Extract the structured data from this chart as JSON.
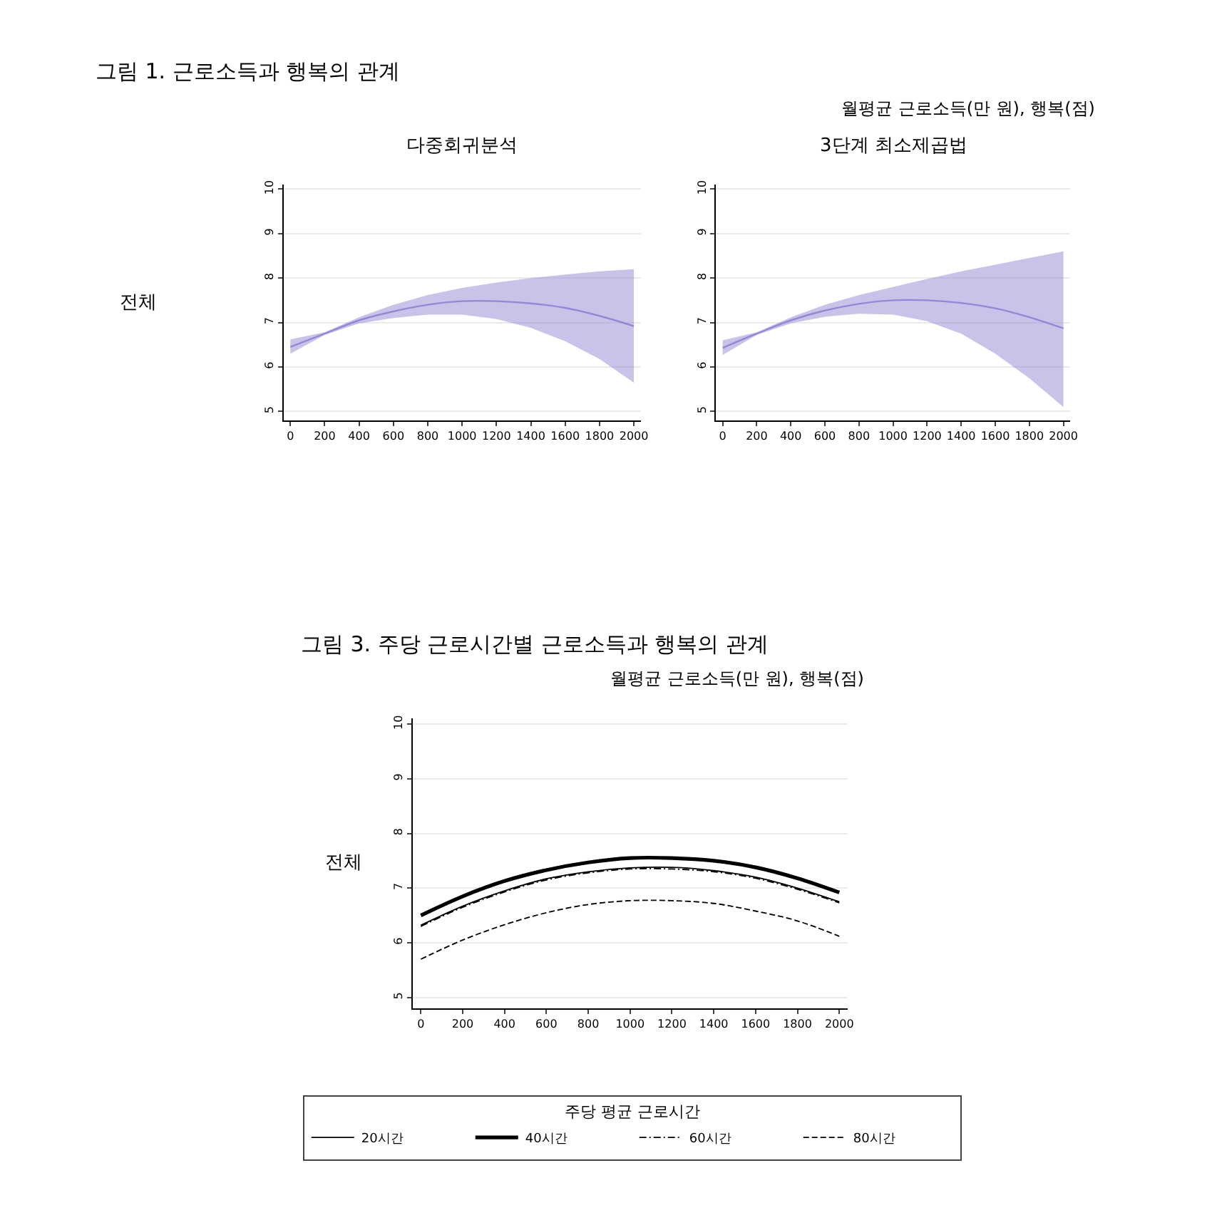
{
  "chart_data": [
    {
      "type": "line",
      "title": "다중회귀분석",
      "annotations": [
        "그림 1. 근로소득과 행복의 관계",
        "월평균 근로소득(만 원), 행복(점)",
        "전체"
      ],
      "x": [
        0,
        200,
        400,
        600,
        800,
        1000,
        1200,
        1400,
        1600,
        1800,
        2000
      ],
      "series": [
        {
          "color": "#9488d4",
          "values": [
            6.45,
            6.75,
            7.05,
            7.25,
            7.4,
            7.48,
            7.48,
            7.43,
            7.33,
            7.15,
            6.92
          ],
          "lower": [
            6.3,
            6.72,
            6.98,
            7.1,
            7.18,
            7.18,
            7.08,
            6.88,
            6.58,
            6.18,
            5.65
          ],
          "upper": [
            6.62,
            6.78,
            7.12,
            7.4,
            7.62,
            7.78,
            7.9,
            8.0,
            8.08,
            8.15,
            8.2
          ]
        }
      ],
      "xlim": [
        -40,
        2040
      ],
      "ylim": [
        4.8,
        10.1
      ],
      "xticks": [
        0,
        200,
        400,
        600,
        800,
        1000,
        1200,
        1400,
        1600,
        1800,
        2000
      ],
      "yticks": [
        5,
        6,
        7,
        8,
        9,
        10
      ],
      "grid": "y",
      "legend": false
    },
    {
      "type": "line",
      "title": "3단계 최소제곱법",
      "x": [
        0,
        200,
        400,
        600,
        800,
        1000,
        1200,
        1400,
        1600,
        1800,
        2000
      ],
      "series": [
        {
          "color": "#9488d4",
          "values": [
            6.43,
            6.75,
            7.05,
            7.27,
            7.42,
            7.5,
            7.5,
            7.44,
            7.32,
            7.12,
            6.87
          ],
          "lower": [
            6.27,
            6.72,
            6.98,
            7.13,
            7.2,
            7.18,
            7.03,
            6.75,
            6.3,
            5.75,
            5.1
          ],
          "upper": [
            6.6,
            6.78,
            7.12,
            7.4,
            7.62,
            7.8,
            7.98,
            8.15,
            8.3,
            8.45,
            8.6
          ]
        }
      ],
      "xlim": [
        -40,
        2040
      ],
      "ylim": [
        4.8,
        10.1
      ],
      "xticks": [
        0,
        200,
        400,
        600,
        800,
        1000,
        1200,
        1400,
        1600,
        1800,
        2000
      ],
      "yticks": [
        5,
        6,
        7,
        8,
        9,
        10
      ],
      "grid": "y",
      "legend": false
    },
    {
      "type": "line",
      "title": "그림 3. 주당 근로시간별 근로소득과 행복의 관계",
      "subtitle": "월평균 근로소득(만 원), 행복(점)",
      "annotations": [
        "전체"
      ],
      "legend_title": "주당 평균 근로시간",
      "x": [
        0,
        200,
        400,
        600,
        800,
        1000,
        1200,
        1400,
        1600,
        1800,
        2000
      ],
      "series": [
        {
          "name": "20시간",
          "color": "#000000",
          "line_style": "solid",
          "values": [
            6.32,
            6.67,
            6.95,
            7.17,
            7.3,
            7.37,
            7.38,
            7.32,
            7.2,
            7.0,
            6.75
          ]
        },
        {
          "name": "40시간",
          "color": "#000000",
          "line_style": "solid",
          "values": [
            6.5,
            6.85,
            7.13,
            7.33,
            7.47,
            7.55,
            7.55,
            7.5,
            7.38,
            7.18,
            6.92
          ]
        },
        {
          "name": "60시간",
          "color": "#000000",
          "line_style": "dashdot",
          "values": [
            6.3,
            6.65,
            6.93,
            7.15,
            7.28,
            7.35,
            7.35,
            7.3,
            7.18,
            6.98,
            6.73
          ]
        },
        {
          "name": "80시간",
          "color": "#000000",
          "line_style": "dashed",
          "values": [
            5.7,
            6.05,
            6.33,
            6.55,
            6.7,
            6.77,
            6.77,
            6.72,
            6.58,
            6.4,
            6.12
          ]
        }
      ],
      "xlim": [
        -40,
        2040
      ],
      "ylim": [
        4.8,
        10.1
      ],
      "xticks": [
        0,
        200,
        400,
        600,
        800,
        1000,
        1200,
        1400,
        1600,
        1800,
        2000
      ],
      "yticks": [
        5,
        6,
        7,
        8,
        9,
        10
      ],
      "grid": "y",
      "legend": "bottom"
    }
  ]
}
